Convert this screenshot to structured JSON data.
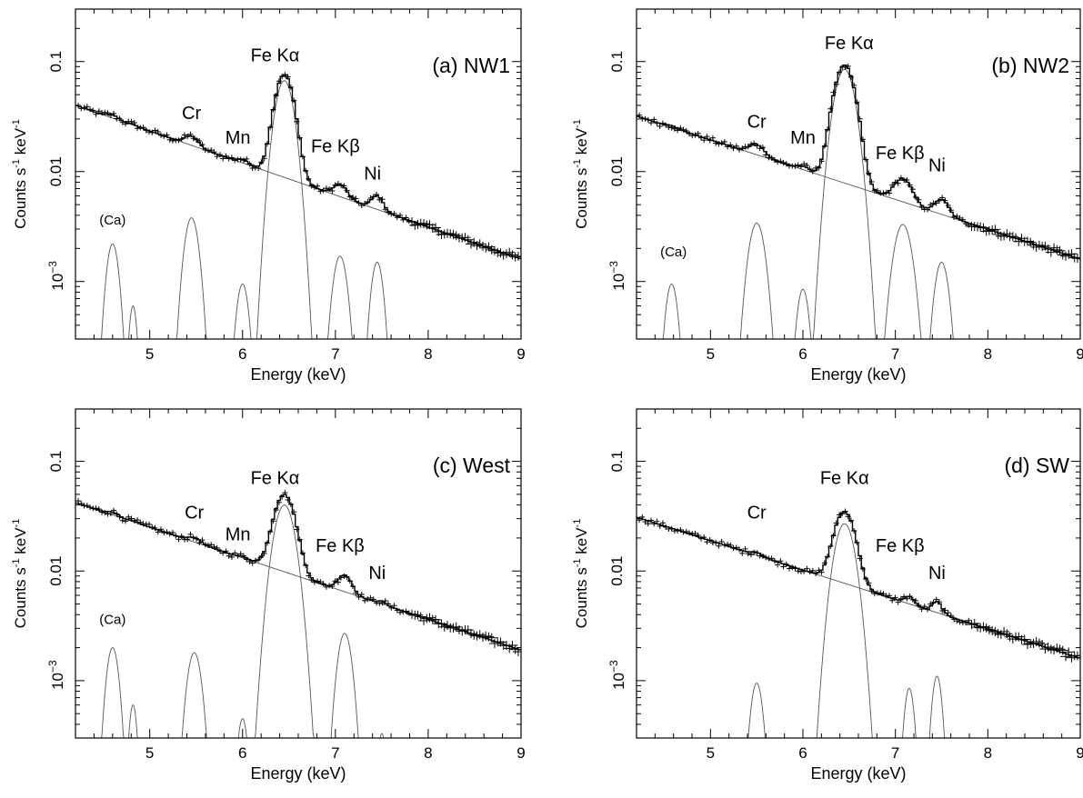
{
  "figure": {
    "xlabel": "Energy (keV)",
    "ylabel_main": "Counts s",
    "ylabel_sup1": "-1",
    "ylabel_mid": " keV",
    "ylabel_sup2": "-1"
  },
  "chart_data": [
    {
      "type": "line",
      "title": "(a) NW1",
      "xlabel": "Energy (keV)",
      "ylabel": "Counts s-1 keV-1",
      "xlim": [
        4.2,
        9.0
      ],
      "ylim": [
        0.0003,
        0.3
      ],
      "log_y": true,
      "xticks": [
        "5",
        "6",
        "7",
        "8",
        "9"
      ],
      "yticks": [
        "10",
        "0.01",
        "0.1"
      ],
      "ytick_exponent": "−3",
      "continuum": {
        "x": [
          4.2,
          9.0
        ],
        "y": [
          0.04,
          0.0016
        ]
      },
      "lines": [
        {
          "label": "Fe Kα",
          "energy": 6.45,
          "peak": 0.067,
          "sigma": 0.09,
          "label_x": 6.35,
          "label_y": 0.1
        },
        {
          "label": "Cr",
          "energy": 5.45,
          "peak": 0.0038,
          "sigma": 0.07,
          "label_x": 5.45,
          "label_y": 0.03
        },
        {
          "label": "Mn",
          "energy": 6.0,
          "peak": 0.00095,
          "sigma": 0.06,
          "label_x": 5.95,
          "label_y": 0.018
        },
        {
          "label": "Fe Kβ",
          "energy": 7.05,
          "peak": 0.0017,
          "sigma": 0.07,
          "label_x": 7.0,
          "label_y": 0.015
        },
        {
          "label": "Ni",
          "energy": 7.45,
          "peak": 0.0015,
          "sigma": 0.06,
          "label_x": 7.4,
          "label_y": 0.0085
        },
        {
          "label": "(Ca)",
          "energy": 4.6,
          "peak": 0.0022,
          "sigma": 0.06,
          "label_x": 4.6,
          "label_y": 0.0033
        },
        {
          "label": "",
          "energy": 4.82,
          "peak": 0.0006,
          "sigma": 0.04
        }
      ]
    },
    {
      "type": "line",
      "title": "(b) NW2",
      "xlabel": "Energy (keV)",
      "ylabel": "Counts s-1 keV-1",
      "xlim": [
        4.2,
        9.0
      ],
      "ylim": [
        0.0003,
        0.3
      ],
      "log_y": true,
      "xticks": [
        "5",
        "6",
        "7",
        "8",
        "9"
      ],
      "yticks": [
        "10",
        "0.01",
        "0.1"
      ],
      "ytick_exponent": "−3",
      "continuum": {
        "x": [
          4.2,
          9.0
        ],
        "y": [
          0.032,
          0.0016
        ]
      },
      "lines": [
        {
          "label": "Fe Kα",
          "energy": 6.45,
          "peak": 0.085,
          "sigma": 0.1,
          "label_x": 6.5,
          "label_y": 0.13
        },
        {
          "label": "Cr",
          "energy": 5.5,
          "peak": 0.0034,
          "sigma": 0.08,
          "label_x": 5.5,
          "label_y": 0.025
        },
        {
          "label": "Mn",
          "energy": 6.0,
          "peak": 0.00085,
          "sigma": 0.06,
          "label_x": 6.0,
          "label_y": 0.018
        },
        {
          "label": "Fe Kβ",
          "energy": 7.08,
          "peak": 0.0033,
          "sigma": 0.09,
          "label_x": 7.05,
          "label_y": 0.013
        },
        {
          "label": "Ni",
          "energy": 7.5,
          "peak": 0.0015,
          "sigma": 0.07,
          "label_x": 7.45,
          "label_y": 0.01
        },
        {
          "label": "(Ca)",
          "energy": 4.58,
          "peak": 0.00095,
          "sigma": 0.06,
          "label_x": 4.6,
          "label_y": 0.0017
        }
      ]
    },
    {
      "type": "line",
      "title": "(c) West",
      "xlabel": "Energy (keV)",
      "ylabel": "Counts s-1 keV-1",
      "xlim": [
        4.2,
        9.0
      ],
      "ylim": [
        0.0003,
        0.3
      ],
      "log_y": true,
      "xticks": [
        "5",
        "6",
        "7",
        "8",
        "9"
      ],
      "yticks": [
        "10",
        "0.01",
        "0.1"
      ],
      "ytick_exponent": "−3",
      "continuum": {
        "x": [
          4.2,
          9.0
        ],
        "y": [
          0.042,
          0.0019
        ]
      },
      "lines": [
        {
          "label": "Fe Kα",
          "energy": 6.45,
          "peak": 0.04,
          "sigma": 0.1,
          "label_x": 6.35,
          "label_y": 0.062
        },
        {
          "label": "Cr",
          "energy": 5.48,
          "peak": 0.0018,
          "sigma": 0.07,
          "label_x": 5.48,
          "label_y": 0.03
        },
        {
          "label": "Mn",
          "energy": 6.0,
          "peak": 0.00045,
          "sigma": 0.05,
          "label_x": 5.95,
          "label_y": 0.019
        },
        {
          "label": "Fe Kβ",
          "energy": 7.1,
          "peak": 0.0027,
          "sigma": 0.07,
          "label_x": 7.05,
          "label_y": 0.015
        },
        {
          "label": "Ni",
          "energy": 7.5,
          "peak": 0.00033,
          "sigma": 0.04,
          "label_x": 7.45,
          "label_y": 0.0085
        },
        {
          "label": "(Ca)",
          "energy": 4.6,
          "peak": 0.002,
          "sigma": 0.06,
          "label_x": 4.6,
          "label_y": 0.0033
        },
        {
          "label": "",
          "energy": 4.82,
          "peak": 0.0006,
          "sigma": 0.04
        }
      ]
    },
    {
      "type": "line",
      "title": "(d) SW",
      "xlabel": "Energy (keV)",
      "ylabel": "Counts s-1 keV-1",
      "xlim": [
        4.2,
        9.0
      ],
      "ylim": [
        0.0003,
        0.3
      ],
      "log_y": true,
      "xticks": [
        "5",
        "6",
        "7",
        "8",
        "9"
      ],
      "yticks": [
        "10",
        "0.01",
        "0.1"
      ],
      "ytick_exponent": "−3",
      "continuum": {
        "x": [
          4.2,
          9.0
        ],
        "y": [
          0.031,
          0.0016
        ]
      },
      "lines": [
        {
          "label": "Fe Kα",
          "energy": 6.45,
          "peak": 0.027,
          "sigma": 0.1,
          "label_x": 6.45,
          "label_y": 0.062
        },
        {
          "label": "Cr",
          "energy": 5.5,
          "peak": 0.00095,
          "sigma": 0.06,
          "label_x": 5.5,
          "label_y": 0.03
        },
        {
          "label": "Fe Kβ",
          "energy": 7.15,
          "peak": 0.00085,
          "sigma": 0.05,
          "label_x": 7.05,
          "label_y": 0.015
        },
        {
          "label": "Ni",
          "energy": 7.45,
          "peak": 0.0011,
          "sigma": 0.05,
          "label_x": 7.45,
          "label_y": 0.0085
        }
      ]
    }
  ]
}
